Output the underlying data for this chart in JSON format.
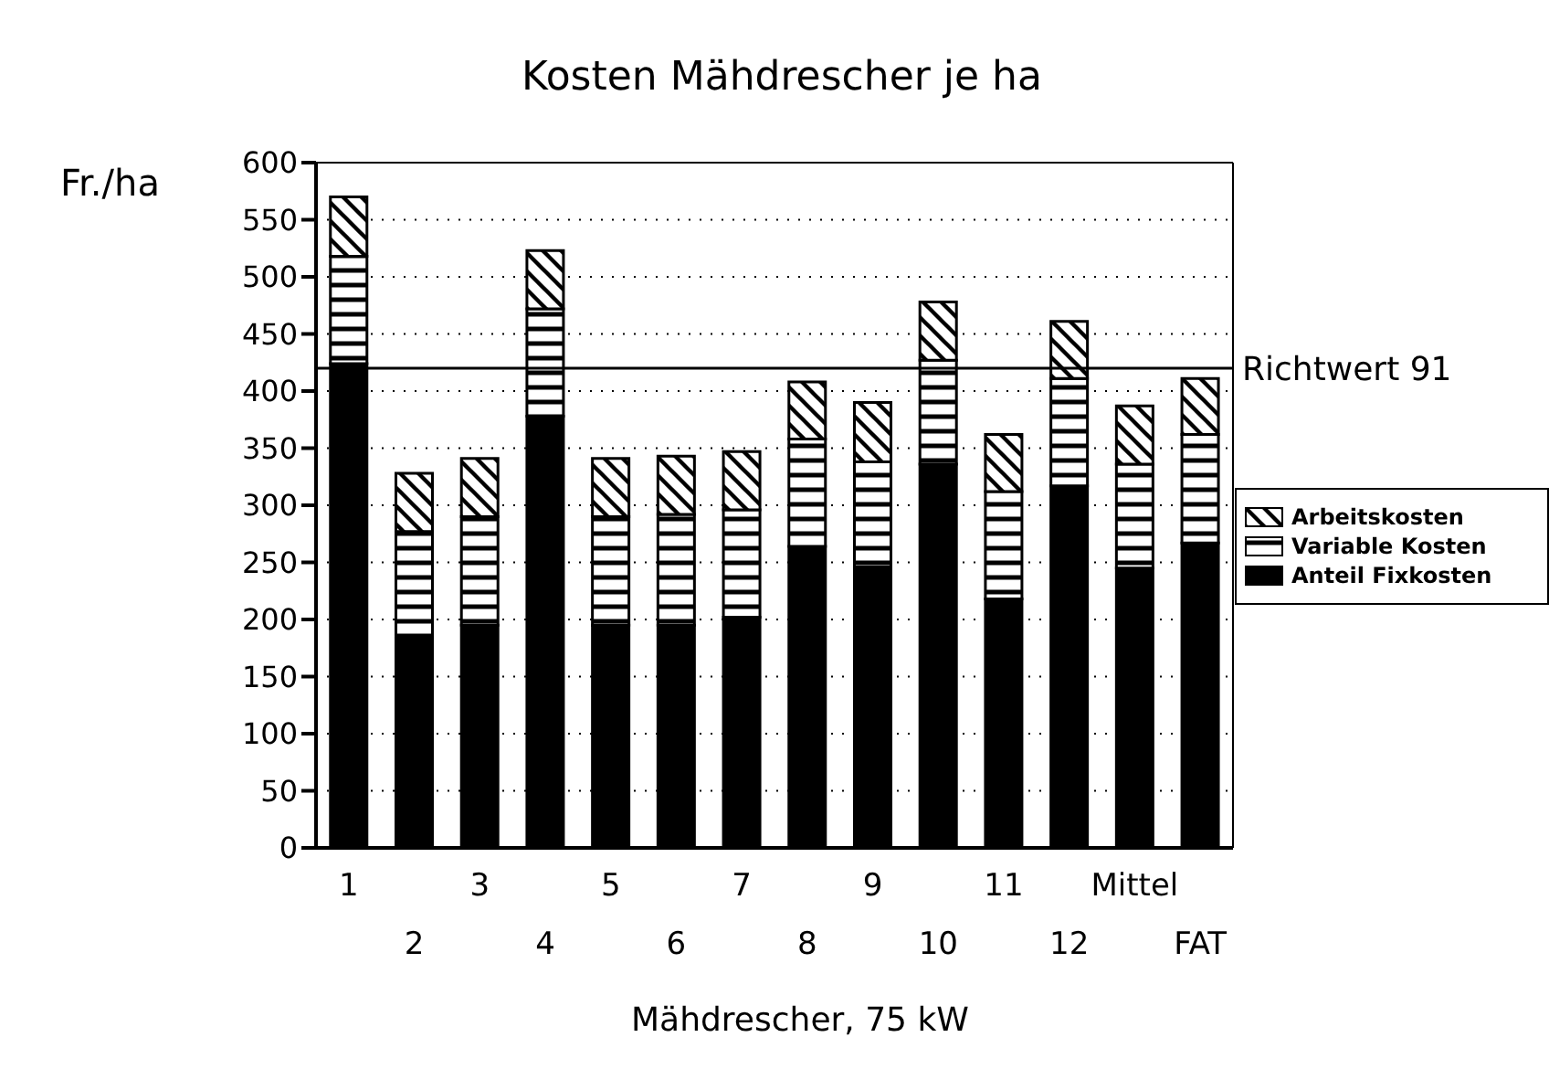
{
  "chart_data": {
    "type": "bar",
    "title": "Kosten Mähdrescher je ha",
    "xlabel": "Mähdrescher, 75 kW",
    "ylabel": "Fr./ha",
    "categories": [
      "1",
      "2",
      "3",
      "4",
      "5",
      "6",
      "7",
      "8",
      "9",
      "10",
      "11",
      "12",
      "Mittel",
      "FAT"
    ],
    "stacked": true,
    "series": [
      {
        "name": "Anteil Fixkosten",
        "color": "#000000",
        "values": [
          424,
          184,
          195,
          378,
          195,
          195,
          202,
          264,
          246,
          336,
          218,
          317,
          245,
          267
        ]
      },
      {
        "name": "Variable Kosten",
        "color": "#000000",
        "values": [
          94,
          93,
          95,
          94,
          95,
          97,
          94,
          94,
          92,
          91,
          94,
          94,
          91,
          95
        ]
      },
      {
        "name": "Arbeitskosten",
        "color": "#000000",
        "values": [
          52,
          51,
          51,
          51,
          51,
          51,
          51,
          50,
          52,
          51,
          50,
          50,
          51,
          49
        ]
      }
    ],
    "ylim": [
      0,
      600
    ],
    "yticks": [
      0,
      50,
      100,
      150,
      200,
      250,
      300,
      350,
      400,
      450,
      500,
      550,
      600
    ],
    "grid": "y",
    "legend": "right",
    "ref_lines": [
      {
        "axis": "y",
        "value": 420,
        "label": "Richtwert 91"
      }
    ]
  }
}
